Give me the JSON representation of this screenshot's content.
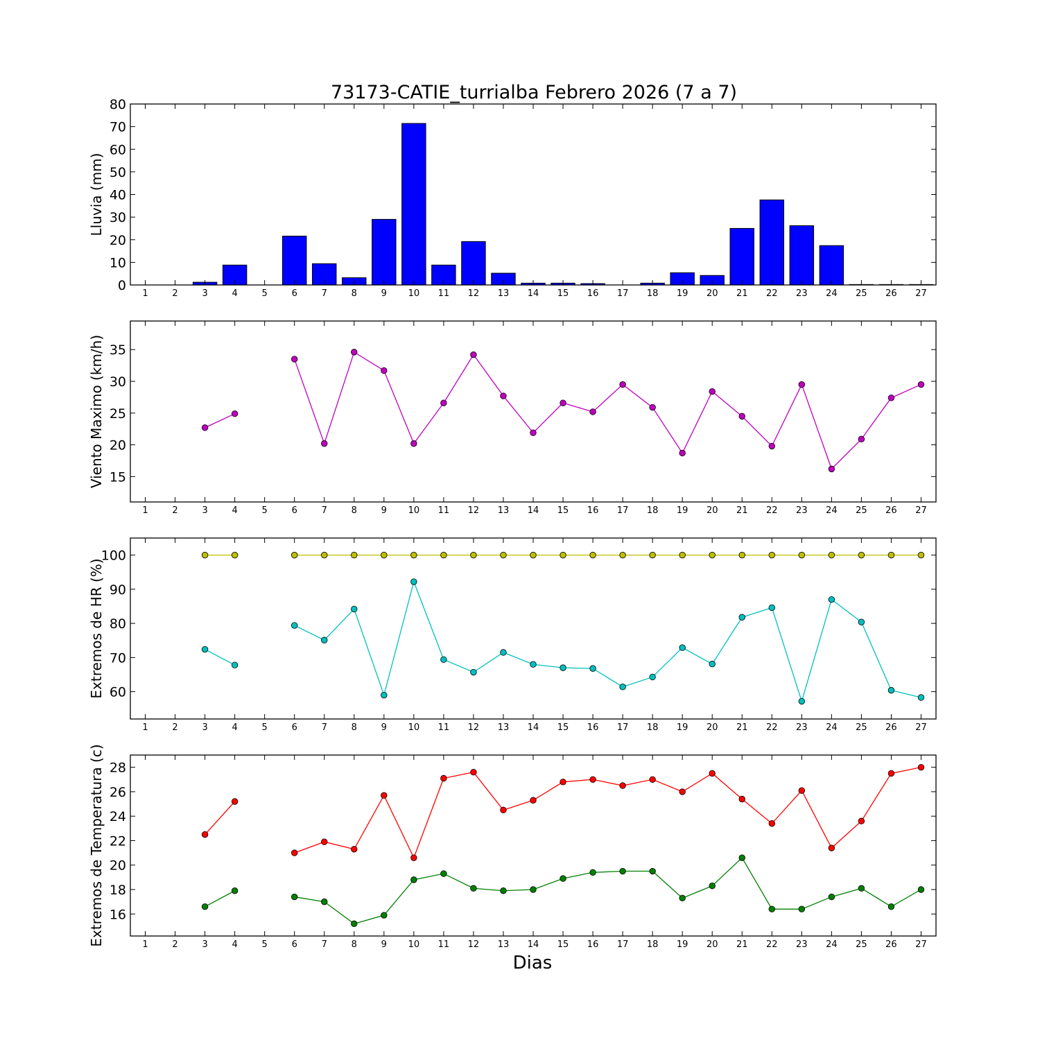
{
  "title": "73173-CATIE_turrialba Febrero 2026  (7 a 7)",
  "xlabel": "Dias",
  "chart_data": [
    {
      "type": "bar",
      "ylabel": "Lluvia (mm)",
      "ylim": [
        0,
        80
      ],
      "yticks": [
        "0",
        "10",
        "20",
        "30",
        "40",
        "50",
        "60",
        "70",
        "80"
      ],
      "xticks": [
        "1",
        "2",
        "3",
        "4",
        "5",
        "6",
        "7",
        "8",
        "9",
        "10",
        "11",
        "12",
        "13",
        "14",
        "15",
        "16",
        "17",
        "18",
        "19",
        "20",
        "21",
        "22",
        "23",
        "24",
        "25",
        "26",
        "27"
      ],
      "x": [
        1,
        2,
        3,
        4,
        5,
        6,
        7,
        8,
        9,
        10,
        11,
        12,
        13,
        14,
        15,
        16,
        17,
        18,
        19,
        20,
        21,
        22,
        23,
        24,
        25,
        26,
        27
      ],
      "series": [
        {
          "color": "#0000ff",
          "values": [
            0,
            0,
            1.2,
            8.8,
            null,
            21.6,
            9.4,
            3.2,
            29.0,
            71.4,
            8.8,
            19.2,
            5.2,
            0.8,
            0.8,
            0.6,
            0,
            0.8,
            5.4,
            4.2,
            25.0,
            37.6,
            26.2,
            17.4,
            0.2,
            0.2,
            0.2
          ]
        }
      ],
      "grid": false
    },
    {
      "type": "line",
      "ylabel": "Viento Maximo (km/h)",
      "ylim": [
        11,
        39.5
      ],
      "yticks": [
        "15",
        "20",
        "25",
        "30",
        "35"
      ],
      "xticks": [
        "1",
        "2",
        "3",
        "4",
        "5",
        "6",
        "7",
        "8",
        "9",
        "10",
        "11",
        "12",
        "13",
        "14",
        "15",
        "16",
        "17",
        "18",
        "19",
        "20",
        "21",
        "22",
        "23",
        "24",
        "25",
        "26",
        "27"
      ],
      "x": [
        1,
        2,
        3,
        4,
        5,
        6,
        7,
        8,
        9,
        10,
        11,
        12,
        13,
        14,
        15,
        16,
        17,
        18,
        19,
        20,
        21,
        22,
        23,
        24,
        25,
        26,
        27
      ],
      "series": [
        {
          "color": "#bf00bf",
          "values": [
            null,
            null,
            22.7,
            24.9,
            null,
            33.5,
            20.2,
            34.6,
            31.7,
            20.2,
            26.6,
            34.2,
            27.7,
            21.9,
            26.6,
            25.2,
            29.5,
            25.9,
            18.7,
            28.4,
            24.5,
            19.8,
            29.5,
            16.2,
            20.9,
            27.4,
            29.5
          ]
        }
      ],
      "grid": false
    },
    {
      "type": "line",
      "ylabel": "Extremos de HR (%)",
      "ylim": [
        52,
        105
      ],
      "yticks": [
        "60",
        "70",
        "80",
        "90",
        "100"
      ],
      "xticks": [
        "1",
        "2",
        "3",
        "4",
        "5",
        "6",
        "7",
        "8",
        "9",
        "10",
        "11",
        "12",
        "13",
        "14",
        "15",
        "16",
        "17",
        "18",
        "19",
        "20",
        "21",
        "22",
        "23",
        "24",
        "25",
        "26",
        "27"
      ],
      "x": [
        1,
        2,
        3,
        4,
        5,
        6,
        7,
        8,
        9,
        10,
        11,
        12,
        13,
        14,
        15,
        16,
        17,
        18,
        19,
        20,
        21,
        22,
        23,
        24,
        25,
        26,
        27
      ],
      "series": [
        {
          "color": "#bfbf00",
          "values": [
            null,
            null,
            100,
            100,
            null,
            100,
            100,
            100,
            100,
            100,
            100,
            100,
            100,
            100,
            100,
            100,
            100,
            100,
            100,
            100,
            100,
            100,
            100,
            100,
            100,
            100,
            100
          ]
        },
        {
          "color": "#00bfbf",
          "values": [
            null,
            null,
            72.4,
            67.8,
            null,
            79.4,
            75.1,
            84.2,
            59.0,
            92.2,
            69.4,
            65.7,
            71.5,
            68.0,
            67.0,
            66.8,
            61.4,
            64.3,
            72.9,
            68.1,
            81.8,
            84.6,
            57.2,
            87.0,
            80.4,
            60.4,
            58.3
          ]
        }
      ],
      "grid": false
    },
    {
      "type": "line",
      "ylabel": "Extremos de Temperatura (c)",
      "ylim": [
        14.2,
        29
      ],
      "yticks": [
        "16",
        "18",
        "20",
        "22",
        "24",
        "26",
        "28"
      ],
      "xticks": [
        "1",
        "2",
        "3",
        "4",
        "5",
        "6",
        "7",
        "8",
        "9",
        "10",
        "11",
        "12",
        "13",
        "14",
        "15",
        "16",
        "17",
        "18",
        "19",
        "20",
        "21",
        "22",
        "23",
        "24",
        "25",
        "26",
        "27"
      ],
      "x": [
        1,
        2,
        3,
        4,
        5,
        6,
        7,
        8,
        9,
        10,
        11,
        12,
        13,
        14,
        15,
        16,
        17,
        18,
        19,
        20,
        21,
        22,
        23,
        24,
        25,
        26,
        27
      ],
      "series": [
        {
          "color": "#ff0000",
          "values": [
            null,
            null,
            22.5,
            25.2,
            null,
            21.0,
            21.9,
            21.3,
            25.7,
            20.6,
            27.1,
            27.6,
            24.5,
            25.3,
            26.8,
            27.0,
            26.5,
            27.0,
            26.0,
            27.5,
            25.4,
            23.4,
            26.1,
            21.4,
            23.6,
            27.5,
            28.0
          ]
        },
        {
          "color": "#008000",
          "values": [
            null,
            null,
            16.6,
            17.9,
            null,
            17.4,
            17.0,
            15.2,
            15.9,
            18.8,
            19.3,
            18.1,
            17.9,
            18.0,
            18.9,
            19.4,
            19.5,
            19.5,
            17.3,
            18.3,
            20.6,
            16.4,
            16.4,
            17.4,
            18.1,
            16.6,
            18.0
          ]
        }
      ],
      "grid": false
    }
  ]
}
